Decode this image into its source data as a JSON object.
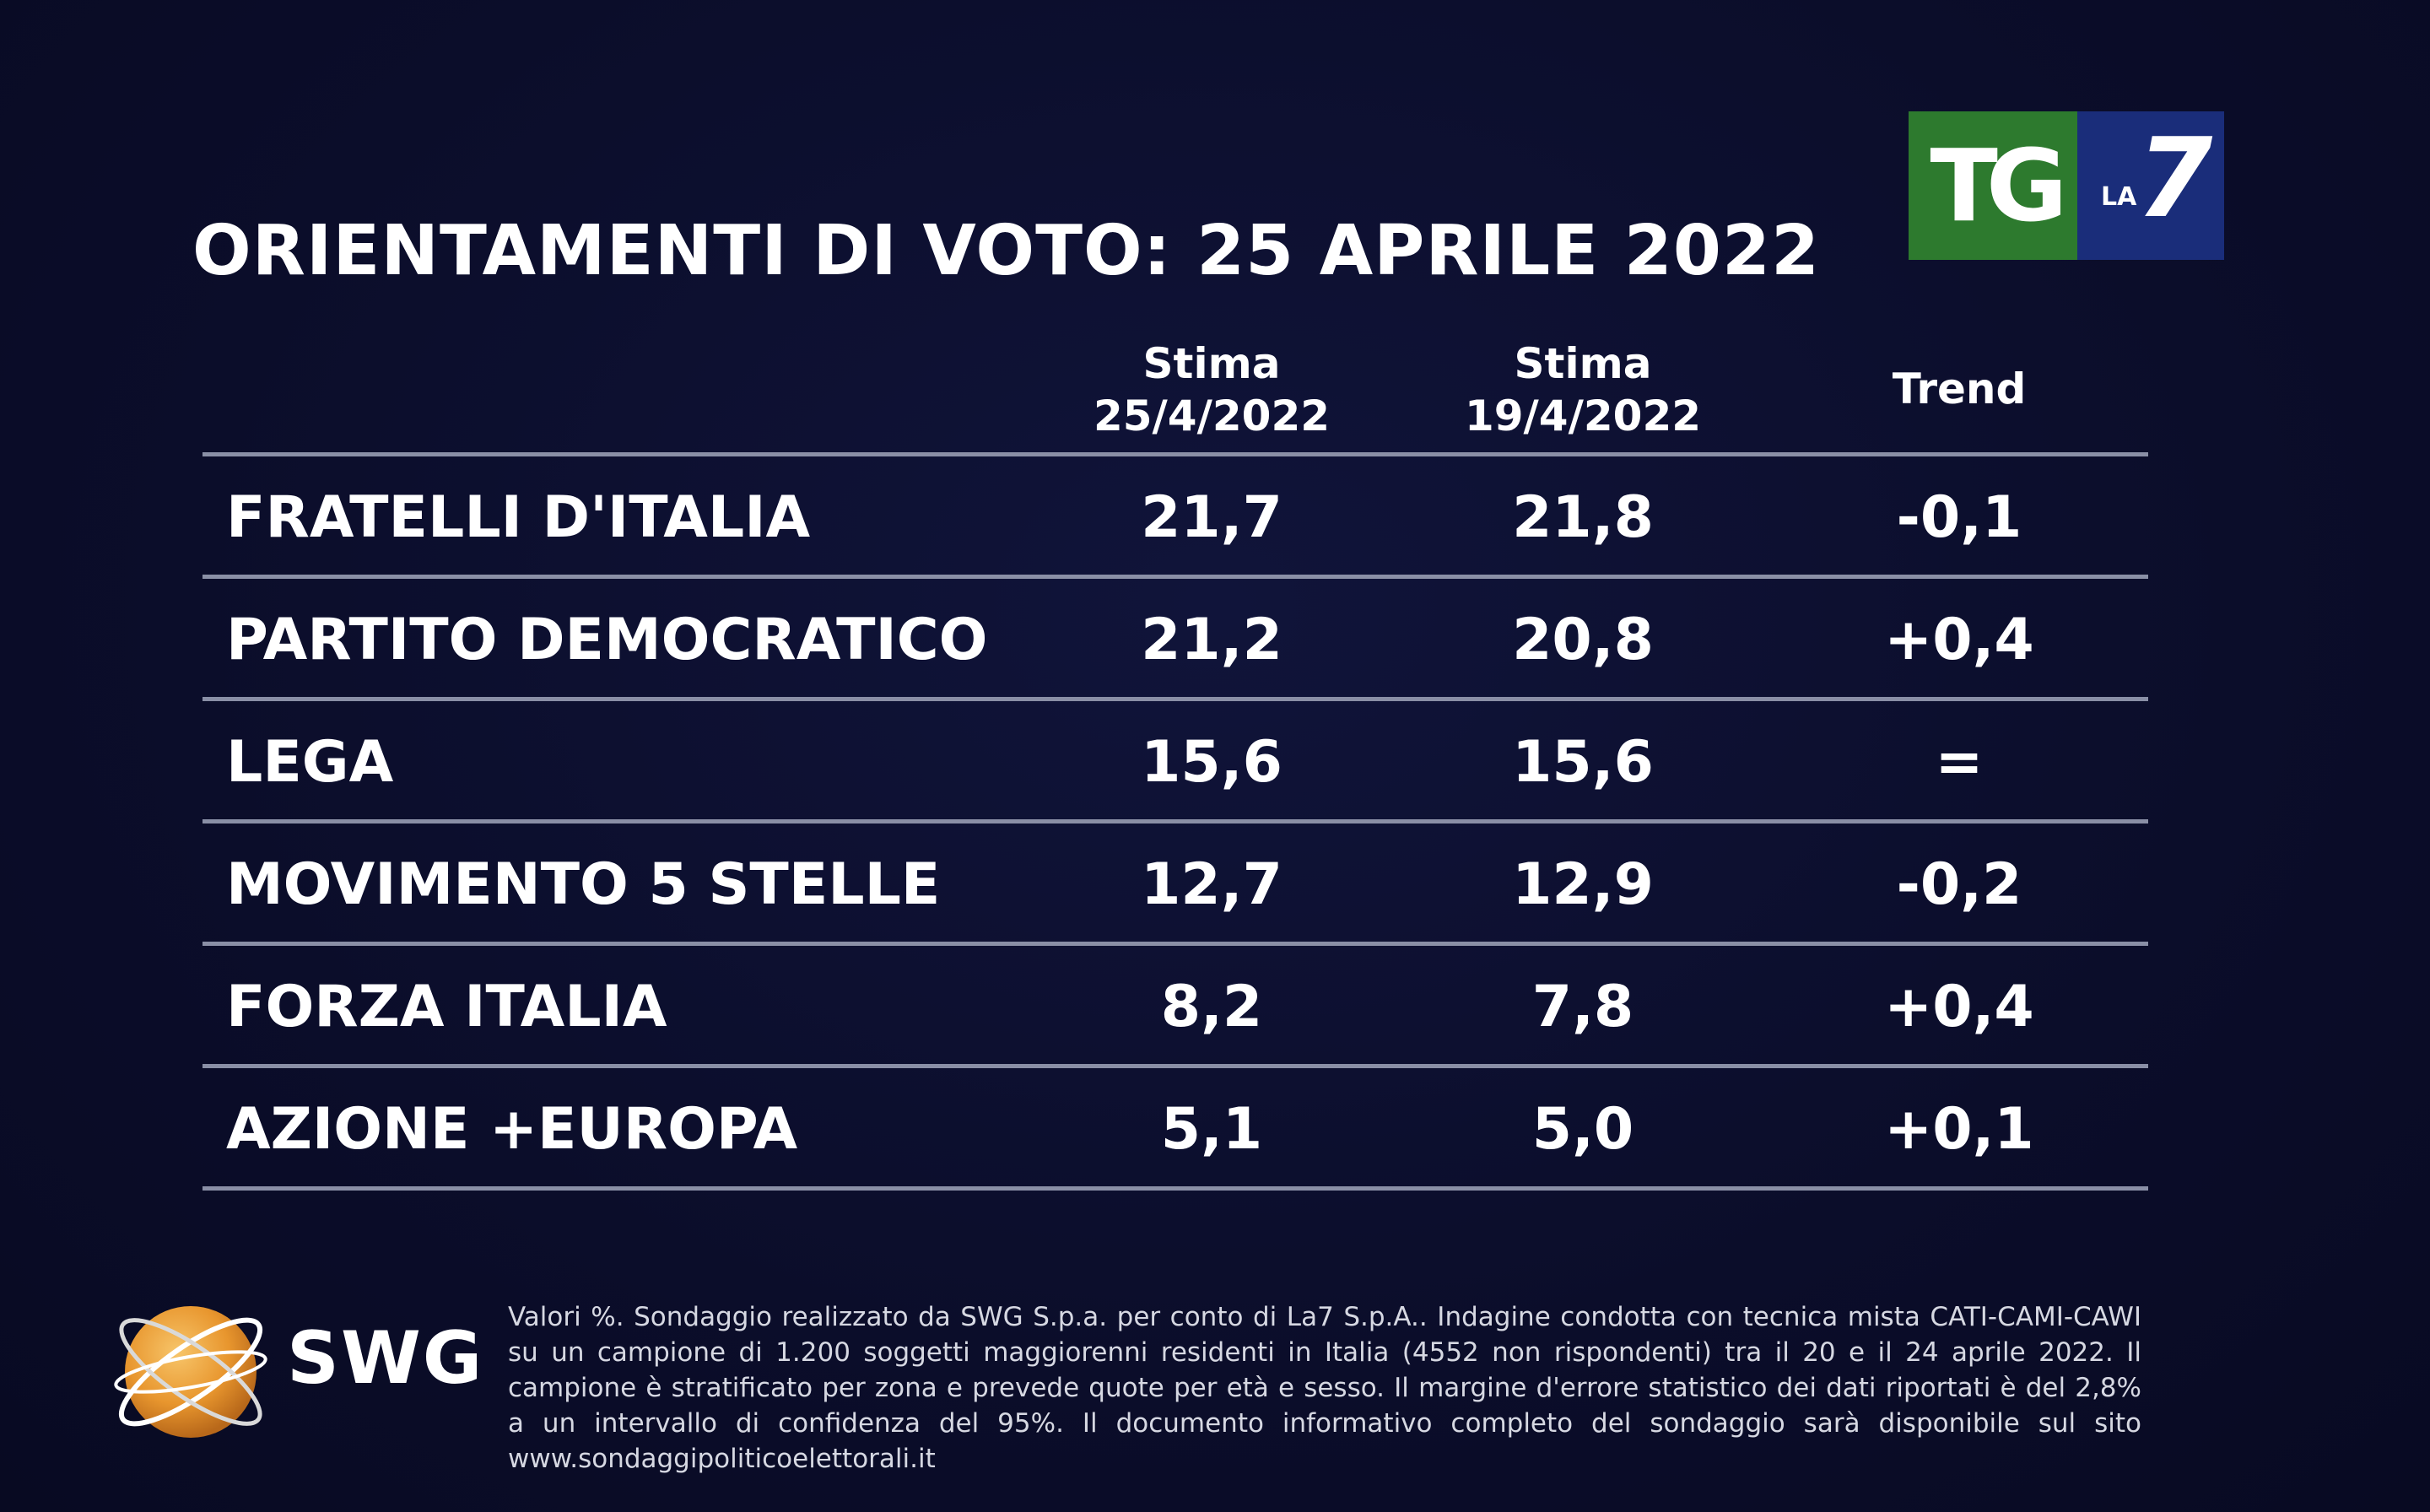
{
  "title": "ORIENTAMENTI DI VOTO: 25 APRILE 2022",
  "logo": {
    "tg": "TG",
    "la": "LA",
    "seven": "7",
    "colors": {
      "green": "#2d7a2e",
      "blue": "#1a2d7a"
    }
  },
  "table": {
    "headers": {
      "col1_line1": "Stima",
      "col1_line2": "25/4/2022",
      "col2_line1": "Stima",
      "col2_line2": "19/4/2022",
      "col3": "Trend"
    },
    "rows": [
      {
        "party": "FRATELLI D'ITALIA",
        "current": "21,7",
        "previous": "21,8",
        "trend": "-0,1"
      },
      {
        "party": "PARTITO DEMOCRATICO",
        "current": "21,2",
        "previous": "20,8",
        "trend": "+0,4"
      },
      {
        "party": "LEGA",
        "current": "15,6",
        "previous": "15,6",
        "trend": "="
      },
      {
        "party": "MOVIMENTO 5 STELLE",
        "current": "12,7",
        "previous": "12,9",
        "trend": "-0,2"
      },
      {
        "party": "FORZA ITALIA",
        "current": "8,2",
        "previous": "7,8",
        "trend": "+0,4"
      },
      {
        "party": "AZIONE +EUROPA",
        "current": "5,1",
        "previous": "5,0",
        "trend": "+0,1"
      }
    ]
  },
  "swg_logo_text": "SWG",
  "footnote": "Valori %. Sondaggio realizzato da SWG S.p.a. per conto di La7 S.p.A.. Indagine condotta con tecnica mista CATI-CAMI-CAWI su un campione di 1.200 soggetti maggiorenni residenti in Italia (4552 non rispondenti) tra il 20 e il 24 aprile 2022. Il campione è stratificato per zona e prevede quote per età e sesso. Il margine d'errore statistico dei dati riportati è del 2,8% a un intervallo di confidenza del 95%. Il documento informativo completo del sondaggio sarà disponibile sul sito www.sondaggipoliticoelettorali.it"
}
